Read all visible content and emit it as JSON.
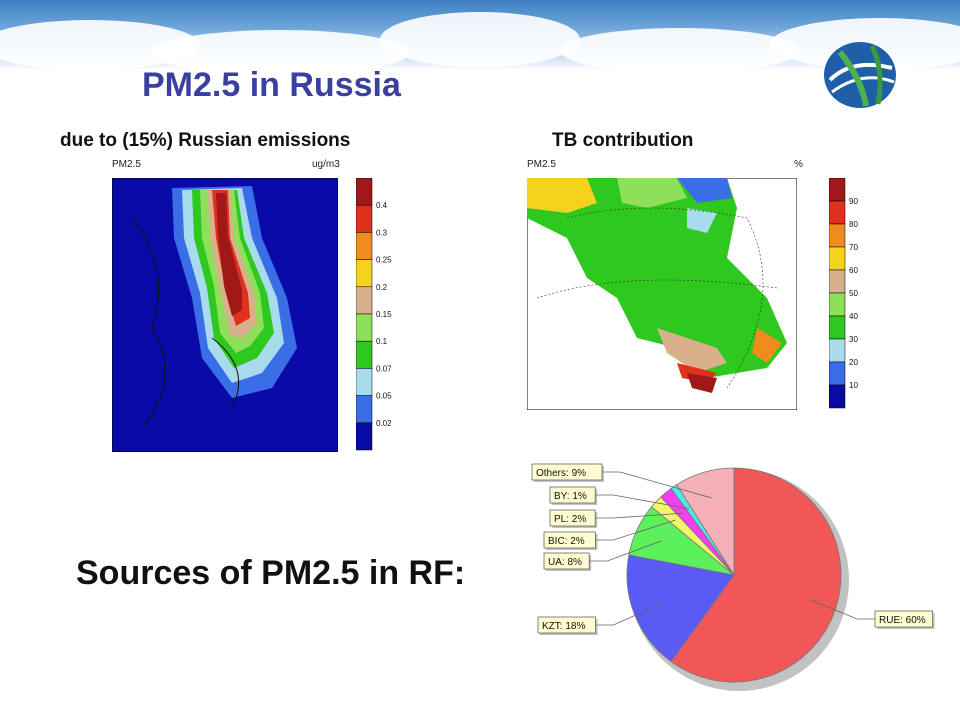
{
  "slide": {
    "title": "PM2.5 in Russia",
    "subtitle_left": "due to (15%) Russian emissions",
    "subtitle_right": "TB contribution",
    "sources_label": "Sources of PM2.5 in RF:"
  },
  "map_left": {
    "field": "PM2.5",
    "unit": "ug/m3",
    "legend_values": [
      "0.4",
      "0.3",
      "0.25",
      "0.2",
      "0.15",
      "0.1",
      "0.07",
      "0.05",
      "0.02"
    ],
    "legend_colors": [
      "#a01818",
      "#e0301e",
      "#f08c1e",
      "#f5d21e",
      "#d8b08c",
      "#8ee05a",
      "#2ec81e",
      "#a8dcec",
      "#3a6ee6",
      "#0a0aa8"
    ]
  },
  "map_right": {
    "field": "PM2.5",
    "unit": "%",
    "legend_values": [
      "90",
      "80",
      "70",
      "60",
      "50",
      "40",
      "30",
      "20",
      "10"
    ],
    "legend_colors": [
      "#a01818",
      "#e0301e",
      "#f08c1e",
      "#f5d21e",
      "#d8b08c",
      "#8ee05a",
      "#2ec81e",
      "#a8dcec",
      "#3a6ee6",
      "#0a0aa8"
    ]
  },
  "chart_data": {
    "type": "pie",
    "slices": [
      {
        "label": "RUE: 60%",
        "value": 60,
        "color": "#f25757"
      },
      {
        "label": "KZT: 18%",
        "value": 18,
        "color": "#5a5af5"
      },
      {
        "label": "UA: 8%",
        "value": 8,
        "color": "#5cf05c"
      },
      {
        "label": "BIC: 2%",
        "value": 2,
        "color": "#f5f56a"
      },
      {
        "label": "PL: 2%",
        "value": 2,
        "color": "#f040f0"
      },
      {
        "label": "BY: 1%",
        "value": 1,
        "color": "#50e8e8"
      },
      {
        "label": "Others: 9%",
        "value": 9,
        "color": "#f5b0b8"
      }
    ]
  }
}
